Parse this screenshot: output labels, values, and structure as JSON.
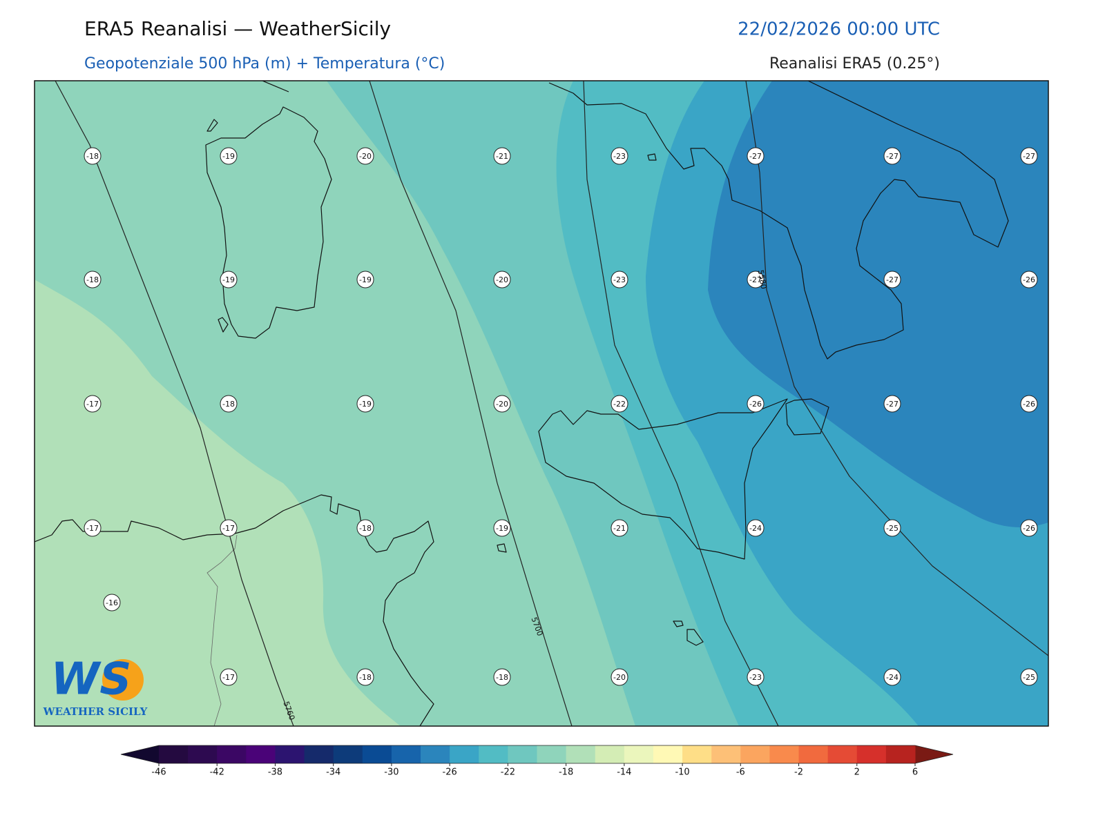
{
  "header": {
    "title": "ERA5 Reanalisi — WeatherSicily",
    "datetime": "22/02/2026 00:00 UTC",
    "subtitle": "Geopotenziale 500 hPa (m) + Temperatura (°C)",
    "source": "Reanalisi ERA5 (0.25°)"
  },
  "map": {
    "temperature_grid": [
      [
        -18,
        -19,
        -20,
        -21,
        -23,
        -27,
        -27,
        -27
      ],
      [
        -18,
        -19,
        -19,
        -20,
        -23,
        -27,
        -27,
        -26
      ],
      [
        -17,
        -18,
        -19,
        -20,
        -22,
        -26,
        -27,
        -26
      ],
      [
        -17,
        -17,
        -18,
        -19,
        -21,
        -24,
        -25,
        -26
      ],
      [
        null,
        -17,
        -18,
        -18,
        -20,
        -23,
        -24,
        -25
      ]
    ],
    "extra_temperatures": [
      -16
    ],
    "contour_labels": [
      5760,
      5700,
      5580
    ]
  },
  "colorbar": {
    "lim": [
      -46,
      6
    ],
    "ticks": [
      -46,
      -42,
      -38,
      -34,
      -30,
      -26,
      -22,
      -18,
      -14,
      -10,
      -6,
      -2,
      2,
      6
    ],
    "colors": [
      "#240a40",
      "#2d0a50",
      "#3b0764",
      "#4a0378",
      "#2c1470",
      "#152a6b",
      "#0d3b7a",
      "#0a4b94",
      "#1764ab",
      "#2b85bc",
      "#3aa5c6",
      "#52bcc4",
      "#6fc7bf",
      "#8fd4bb",
      "#b1e0b8",
      "#d4edb5",
      "#ebf6bc",
      "#fff9b5",
      "#fede87",
      "#fdc077",
      "#fba55f",
      "#f98a4c",
      "#f16a3e",
      "#e54b35",
      "#d6302b",
      "#b7231f"
    ],
    "extend_colors": [
      "#12082f",
      "#7a1a14"
    ]
  },
  "logo": {
    "mark": "WS",
    "name": "WEATHER SICILY"
  }
}
